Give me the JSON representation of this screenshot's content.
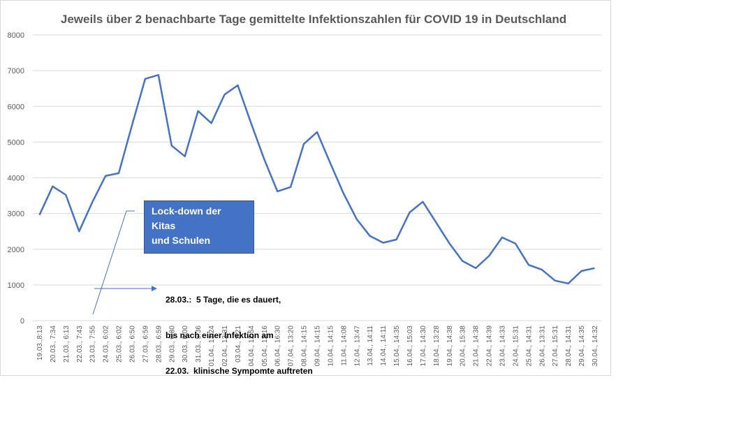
{
  "chart_data": {
    "type": "line",
    "title": "Jeweils über 2 benachbarte Tage gemittelte Infektionszahlen für COVID 19 in Deutschland",
    "ylim": [
      0,
      8000
    ],
    "yticks": [
      0,
      1000,
      2000,
      3000,
      4000,
      5000,
      6000,
      7000,
      8000
    ],
    "grid": true,
    "line_color": "#4472c4",
    "categories": [
      "19.03.,8:13",
      "20.03., 7:34",
      "21.03., 6:13",
      "22.03., 7:43",
      "23.03., 7:55",
      "24.03., 6:02",
      "25.03., 6:02",
      "26.03., 6:50",
      "27.03., 6:59",
      "28.03., 6:59",
      "29.03., 6:30",
      "30.03., 0:00",
      "31.03., 5:36",
      "01.04., 13:24",
      "02.04., 12:31",
      "03.04., 2:21",
      "04.04., 12:54",
      "05.04., 12:16",
      "06.04., 16:30",
      "07.04., 13:20",
      "08.04., 14:15",
      "09.04., 14:15",
      "10.04., 14:15",
      "11.04., 14:08",
      "12.04., 13:47",
      "13.04., 14:11",
      "14.04., 14:11",
      "15.04., 14:35",
      "16.04., 15:03",
      "17.04., 14:30",
      "18.04., 13:28",
      "19.04., 14:38",
      "20.04., 15:38",
      "21.04., 14:38",
      "22.04., 14:39",
      "23.04., 14:33",
      "24.04., 15:31",
      "25.04., 14:31",
      "26.04., 13:31",
      "27.04., 15:31",
      "28.04., 14:31",
      "29.04., 14:35",
      "30.04., 14:32"
    ],
    "values": [
      2960,
      3760,
      3520,
      2500,
      3320,
      4050,
      4130,
      5470,
      6770,
      6880,
      4900,
      4600,
      5870,
      5530,
      6330,
      6590,
      5540,
      4520,
      3620,
      3740,
      4950,
      5280,
      4410,
      3560,
      2840,
      2370,
      2180,
      2270,
      3030,
      3330,
      2750,
      2170,
      1670,
      1470,
      1810,
      2330,
      2160,
      1560,
      1430,
      1120,
      1040,
      1390,
      1470
    ]
  },
  "callout": {
    "label_line1": "Lock-down der Kitas",
    "label_line2": "und Schulen"
  },
  "note": {
    "line1": "28.03.:  5 Tage, die es dauert,",
    "line2": "bis nach einer Infektion am",
    "line3": "22.03.  klinische Sympomte auftreten"
  }
}
